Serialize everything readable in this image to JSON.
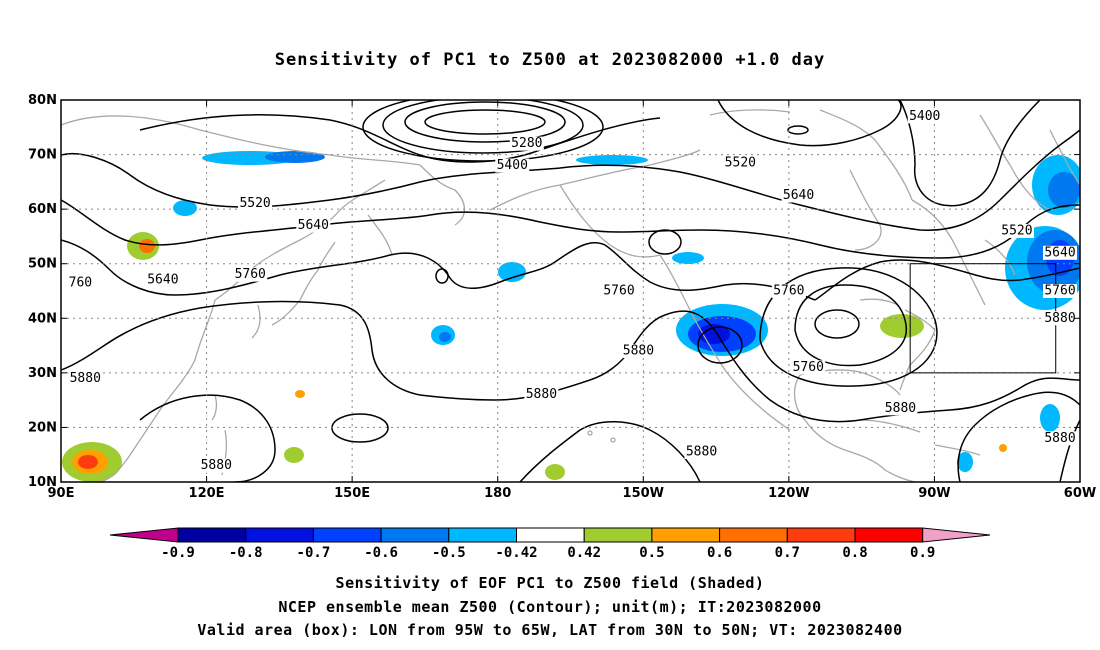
{
  "title": "Sensitivity of PC1 to Z500 at 2023082000 +1.0 day",
  "footer": {
    "line1": "Sensitivity of EOF PC1 to Z500 field (Shaded)",
    "line2": "NCEP ensemble mean Z500 (Contour); unit(m); IT:2023082000",
    "line3": "Valid area (box): LON from 95W to 65W, LAT from 30N to 50N; VT: 2023082400"
  },
  "map": {
    "lon_range": [
      90,
      300
    ],
    "lat_range": [
      10,
      80
    ],
    "x_ticks": [
      {
        "lon": 90,
        "label": "90E"
      },
      {
        "lon": 120,
        "label": "120E"
      },
      {
        "lon": 150,
        "label": "150E"
      },
      {
        "lon": 180,
        "label": "180"
      },
      {
        "lon": 210,
        "label": "150W"
      },
      {
        "lon": 240,
        "label": "120W"
      },
      {
        "lon": 270,
        "label": "90W"
      },
      {
        "lon": 300,
        "label": "60W"
      }
    ],
    "y_ticks": [
      {
        "lat": 10,
        "label": "10N"
      },
      {
        "lat": 20,
        "label": "20N"
      },
      {
        "lat": 30,
        "label": "30N"
      },
      {
        "lat": 40,
        "label": "40N"
      },
      {
        "lat": 50,
        "label": "50N"
      },
      {
        "lat": 60,
        "label": "60N"
      },
      {
        "lat": 70,
        "label": "70N"
      },
      {
        "lat": 80,
        "label": "80N"
      }
    ],
    "valid_box": {
      "lon_min": 265,
      "lon_max": 295,
      "lat_min": 30,
      "lat_max": 50
    },
    "contour_labels": [
      {
        "text": "5400",
        "lon": 268,
        "lat": 77
      },
      {
        "text": "5280",
        "lon": 186,
        "lat": 72
      },
      {
        "text": "5400",
        "lon": 183,
        "lat": 68
      },
      {
        "text": "5520",
        "lon": 130,
        "lat": 61
      },
      {
        "text": "5520",
        "lon": 230,
        "lat": 68.5
      },
      {
        "text": "5640",
        "lon": 142,
        "lat": 57
      },
      {
        "text": "5640",
        "lon": 242,
        "lat": 62.5
      },
      {
        "text": "5520",
        "lon": 287,
        "lat": 56
      },
      {
        "text": "5640",
        "lon": 111,
        "lat": 47
      },
      {
        "text": "5640",
        "lon": 312,
        "lat": 52
      },
      {
        "text": "5760",
        "lon": 129,
        "lat": 48
      },
      {
        "text": "5760",
        "lon": 205,
        "lat": 45
      },
      {
        "text": "5760",
        "lon": 240,
        "lat": 45
      },
      {
        "text": "5760",
        "lon": 312,
        "lat": 45
      },
      {
        "text": "760",
        "lon": 94,
        "lat": 46.5
      },
      {
        "text": "5880",
        "lon": 302,
        "lat": 40
      },
      {
        "text": "5880",
        "lon": 209,
        "lat": 34
      },
      {
        "text": "5880",
        "lon": 95,
        "lat": 29
      },
      {
        "text": "5880",
        "lon": 189,
        "lat": 26
      },
      {
        "text": "5880",
        "lon": 263,
        "lat": 23.5
      },
      {
        "text": "5880",
        "lon": 222,
        "lat": 15.5
      },
      {
        "text": "5880",
        "lon": 122,
        "lat": 13
      },
      {
        "text": "5760",
        "lon": 244,
        "lat": 31
      },
      {
        "text": "5880",
        "lon": 302,
        "lat": 18
      }
    ]
  },
  "colorbar": {
    "labels": [
      "-0.9",
      "-0.8",
      "-0.7",
      "-0.6",
      "-0.5",
      "-0.42",
      "0.42",
      "0.5",
      "0.6",
      "0.7",
      "0.8",
      "0.9"
    ],
    "colors": [
      "#0000a0",
      "#0010e0",
      "#0040ff",
      "#0078f0",
      "#00b8ff",
      "#ffffff",
      "#a0cc30",
      "#ffa000",
      "#ff7000",
      "#ff3c10",
      "#ff0000"
    ],
    "low_end_color": "#c0008c",
    "high_end_color": "#f2a0c8"
  }
}
